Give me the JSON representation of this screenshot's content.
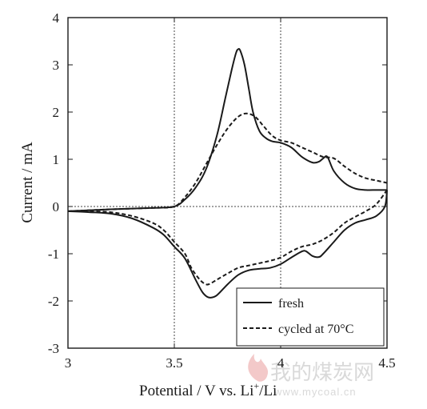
{
  "chart_data": {
    "type": "line",
    "xlabel": "Potential / V vs. Li",
    "xlabel_sup": "+",
    "xlabel_tail": "/Li",
    "ylabel": "Current / mA",
    "xlim": [
      3,
      4.5
    ],
    "ylim": [
      -3,
      4
    ],
    "xticks": [
      "3",
      "3.5",
      "4",
      "4.5"
    ],
    "yticks": [
      "-3",
      "-2",
      "-1",
      "0",
      "1",
      "2",
      "3",
      "4"
    ],
    "grid": "dashed, at x = 3.5 and 4 and y = 0",
    "legend_position": "bottom-right",
    "series": [
      {
        "name": "fresh",
        "style": "solid",
        "branch_anodic": {
          "x": [
            3.0,
            3.2,
            3.4,
            3.5,
            3.55,
            3.6,
            3.65,
            3.7,
            3.74,
            3.77,
            3.79,
            3.8,
            3.81,
            3.83,
            3.85,
            3.87,
            3.9,
            3.93,
            3.96,
            4.0,
            4.05,
            4.1,
            4.15,
            4.18,
            4.2,
            4.22,
            4.25,
            4.3,
            4.35,
            4.4,
            4.45,
            4.5
          ],
          "y": [
            -0.1,
            -0.06,
            -0.03,
            0.0,
            0.15,
            0.4,
            0.8,
            1.5,
            2.3,
            2.9,
            3.25,
            3.33,
            3.3,
            3.0,
            2.5,
            2.0,
            1.6,
            1.45,
            1.38,
            1.35,
            1.25,
            1.05,
            0.93,
            0.95,
            1.02,
            1.05,
            0.75,
            0.5,
            0.38,
            0.35,
            0.35,
            0.35
          ]
        },
        "branch_cathodic": {
          "x": [
            4.5,
            4.49,
            4.45,
            4.4,
            4.35,
            4.3,
            4.25,
            4.2,
            4.18,
            4.15,
            4.12,
            4.1,
            4.05,
            4.0,
            3.95,
            3.9,
            3.85,
            3.8,
            3.75,
            3.7,
            3.67,
            3.65,
            3.63,
            3.6,
            3.55,
            3.5,
            3.45,
            3.4,
            3.3,
            3.2,
            3.1,
            3.0
          ],
          "y": [
            0.35,
            0.0,
            -0.2,
            -0.28,
            -0.35,
            -0.5,
            -0.75,
            -1.0,
            -1.07,
            -1.05,
            -0.95,
            -0.95,
            -1.08,
            -1.22,
            -1.3,
            -1.32,
            -1.35,
            -1.45,
            -1.65,
            -1.88,
            -1.93,
            -1.9,
            -1.8,
            -1.55,
            -1.1,
            -0.85,
            -0.6,
            -0.45,
            -0.25,
            -0.15,
            -0.12,
            -0.1
          ]
        }
      },
      {
        "name": "cycled at 70°C",
        "style": "dashed",
        "branch_anodic": {
          "x": [
            3.0,
            3.2,
            3.4,
            3.5,
            3.55,
            3.6,
            3.65,
            3.7,
            3.75,
            3.8,
            3.84,
            3.88,
            3.92,
            3.96,
            4.0,
            4.05,
            4.1,
            4.15,
            4.2,
            4.25,
            4.3,
            4.35,
            4.4,
            4.45,
            4.5
          ],
          "y": [
            -0.1,
            -0.06,
            -0.03,
            0.0,
            0.2,
            0.5,
            0.9,
            1.3,
            1.65,
            1.9,
            1.97,
            1.9,
            1.7,
            1.5,
            1.4,
            1.35,
            1.25,
            1.15,
            1.05,
            1.02,
            0.85,
            0.7,
            0.6,
            0.55,
            0.5
          ]
        },
        "branch_cathodic": {
          "x": [
            4.5,
            4.45,
            4.4,
            4.35,
            4.3,
            4.25,
            4.2,
            4.15,
            4.1,
            4.05,
            4.0,
            3.95,
            3.9,
            3.85,
            3.8,
            3.75,
            3.7,
            3.67,
            3.65,
            3.62,
            3.58,
            3.55,
            3.5,
            3.45,
            3.4,
            3.3,
            3.2,
            3.1,
            3.0
          ],
          "y": [
            0.35,
            0.05,
            -0.1,
            -0.22,
            -0.35,
            -0.55,
            -0.7,
            -0.8,
            -0.85,
            -0.95,
            -1.08,
            -1.15,
            -1.2,
            -1.25,
            -1.3,
            -1.42,
            -1.55,
            -1.63,
            -1.65,
            -1.55,
            -1.3,
            -1.0,
            -0.75,
            -0.5,
            -0.35,
            -0.2,
            -0.12,
            -0.1,
            -0.1
          ]
        }
      }
    ]
  },
  "watermark": {
    "brand_cn": "我的煤炭网",
    "url": "www.mycoal.cn"
  },
  "colors": {
    "line": "#1a1a1a",
    "grid": "#444444",
    "watermark": "#d9d9d9",
    "watermark_flame": "#f3c9c9"
  }
}
